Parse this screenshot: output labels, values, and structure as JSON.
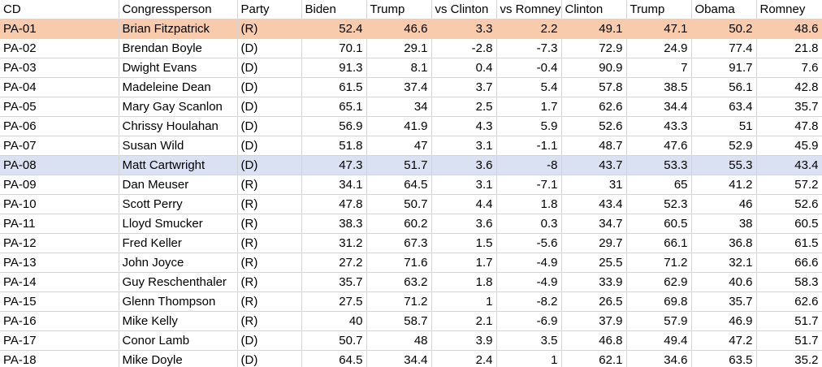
{
  "headers": [
    "CD",
    "Congressperson",
    "Party",
    "Biden",
    "Trump",
    "vs Clinton",
    "vs Romney",
    "Clinton",
    "Trump",
    "Obama",
    "Romney"
  ],
  "highlight_colors": {
    "orange": "#f8cbad",
    "blue": "#d9e1f2"
  },
  "rows": [
    {
      "cd": "PA-01",
      "name": "Brian Fitzpatrick",
      "party": "(R)",
      "biden": "52.4",
      "trump": "46.6",
      "vs_clinton": "3.3",
      "vs_romney": "2.2",
      "clinton": "49.1",
      "trump16": "47.1",
      "obama": "50.2",
      "romney": "48.6",
      "highlight": "orange"
    },
    {
      "cd": "PA-02",
      "name": "Brendan Boyle",
      "party": "(D)",
      "biden": "70.1",
      "trump": "29.1",
      "vs_clinton": "-2.8",
      "vs_romney": "-7.3",
      "clinton": "72.9",
      "trump16": "24.9",
      "obama": "77.4",
      "romney": "21.8"
    },
    {
      "cd": "PA-03",
      "name": "Dwight Evans",
      "party": "(D)",
      "biden": "91.3",
      "trump": "8.1",
      "vs_clinton": "0.4",
      "vs_romney": "-0.4",
      "clinton": "90.9",
      "trump16": "7",
      "obama": "91.7",
      "romney": "7.6"
    },
    {
      "cd": "PA-04",
      "name": "Madeleine Dean",
      "party": "(D)",
      "biden": "61.5",
      "trump": "37.4",
      "vs_clinton": "3.7",
      "vs_romney": "5.4",
      "clinton": "57.8",
      "trump16": "38.5",
      "obama": "56.1",
      "romney": "42.8"
    },
    {
      "cd": "PA-05",
      "name": "Mary Gay Scanlon",
      "party": "(D)",
      "biden": "65.1",
      "trump": "34",
      "vs_clinton": "2.5",
      "vs_romney": "1.7",
      "clinton": "62.6",
      "trump16": "34.4",
      "obama": "63.4",
      "romney": "35.7"
    },
    {
      "cd": "PA-06",
      "name": "Chrissy Houlahan",
      "party": "(D)",
      "biden": "56.9",
      "trump": "41.9",
      "vs_clinton": "4.3",
      "vs_romney": "5.9",
      "clinton": "52.6",
      "trump16": "43.3",
      "obama": "51",
      "romney": "47.8"
    },
    {
      "cd": "PA-07",
      "name": "Susan Wild",
      "party": "(D)",
      "biden": "51.8",
      "trump": "47",
      "vs_clinton": "3.1",
      "vs_romney": "-1.1",
      "clinton": "48.7",
      "trump16": "47.6",
      "obama": "52.9",
      "romney": "45.9"
    },
    {
      "cd": "PA-08",
      "name": "Matt Cartwright",
      "party": "(D)",
      "biden": "47.3",
      "trump": "51.7",
      "vs_clinton": "3.6",
      "vs_romney": "-8",
      "clinton": "43.7",
      "trump16": "53.3",
      "obama": "55.3",
      "romney": "43.4",
      "highlight": "blue"
    },
    {
      "cd": "PA-09",
      "name": "Dan Meuser",
      "party": "(R)",
      "biden": "34.1",
      "trump": "64.5",
      "vs_clinton": "3.1",
      "vs_romney": "-7.1",
      "clinton": "31",
      "trump16": "65",
      "obama": "41.2",
      "romney": "57.2"
    },
    {
      "cd": "PA-10",
      "name": "Scott Perry",
      "party": "(R)",
      "biden": "47.8",
      "trump": "50.7",
      "vs_clinton": "4.4",
      "vs_romney": "1.8",
      "clinton": "43.4",
      "trump16": "52.3",
      "obama": "46",
      "romney": "52.6"
    },
    {
      "cd": "PA-11",
      "name": "Lloyd Smucker",
      "party": "(R)",
      "biden": "38.3",
      "trump": "60.2",
      "vs_clinton": "3.6",
      "vs_romney": "0.3",
      "clinton": "34.7",
      "trump16": "60.5",
      "obama": "38",
      "romney": "60.5"
    },
    {
      "cd": "PA-12",
      "name": "Fred Keller",
      "party": "(R)",
      "biden": "31.2",
      "trump": "67.3",
      "vs_clinton": "1.5",
      "vs_romney": "-5.6",
      "clinton": "29.7",
      "trump16": "66.1",
      "obama": "36.8",
      "romney": "61.5"
    },
    {
      "cd": "PA-13",
      "name": "John Joyce",
      "party": "(R)",
      "biden": "27.2",
      "trump": "71.6",
      "vs_clinton": "1.7",
      "vs_romney": "-4.9",
      "clinton": "25.5",
      "trump16": "71.2",
      "obama": "32.1",
      "romney": "66.6"
    },
    {
      "cd": "PA-14",
      "name": "Guy Reschenthaler",
      "party": "(R)",
      "biden": "35.7",
      "trump": "63.2",
      "vs_clinton": "1.8",
      "vs_romney": "-4.9",
      "clinton": "33.9",
      "trump16": "62.9",
      "obama": "40.6",
      "romney": "58.3"
    },
    {
      "cd": "PA-15",
      "name": "Glenn Thompson",
      "party": "(R)",
      "biden": "27.5",
      "trump": "71.2",
      "vs_clinton": "1",
      "vs_romney": "-8.2",
      "clinton": "26.5",
      "trump16": "69.8",
      "obama": "35.7",
      "romney": "62.6"
    },
    {
      "cd": "PA-16",
      "name": "Mike Kelly",
      "party": "(R)",
      "biden": "40",
      "trump": "58.7",
      "vs_clinton": "2.1",
      "vs_romney": "-6.9",
      "clinton": "37.9",
      "trump16": "57.9",
      "obama": "46.9",
      "romney": "51.7"
    },
    {
      "cd": "PA-17",
      "name": "Conor Lamb",
      "party": "(D)",
      "biden": "50.7",
      "trump": "48",
      "vs_clinton": "3.9",
      "vs_romney": "3.5",
      "clinton": "46.8",
      "trump16": "49.4",
      "obama": "47.2",
      "romney": "51.7"
    },
    {
      "cd": "PA-18",
      "name": "Mike Doyle",
      "party": "(D)",
      "biden": "64.5",
      "trump": "34.4",
      "vs_clinton": "2.4",
      "vs_romney": "1",
      "clinton": "62.1",
      "trump16": "34.6",
      "obama": "63.5",
      "romney": "35.2"
    }
  ]
}
